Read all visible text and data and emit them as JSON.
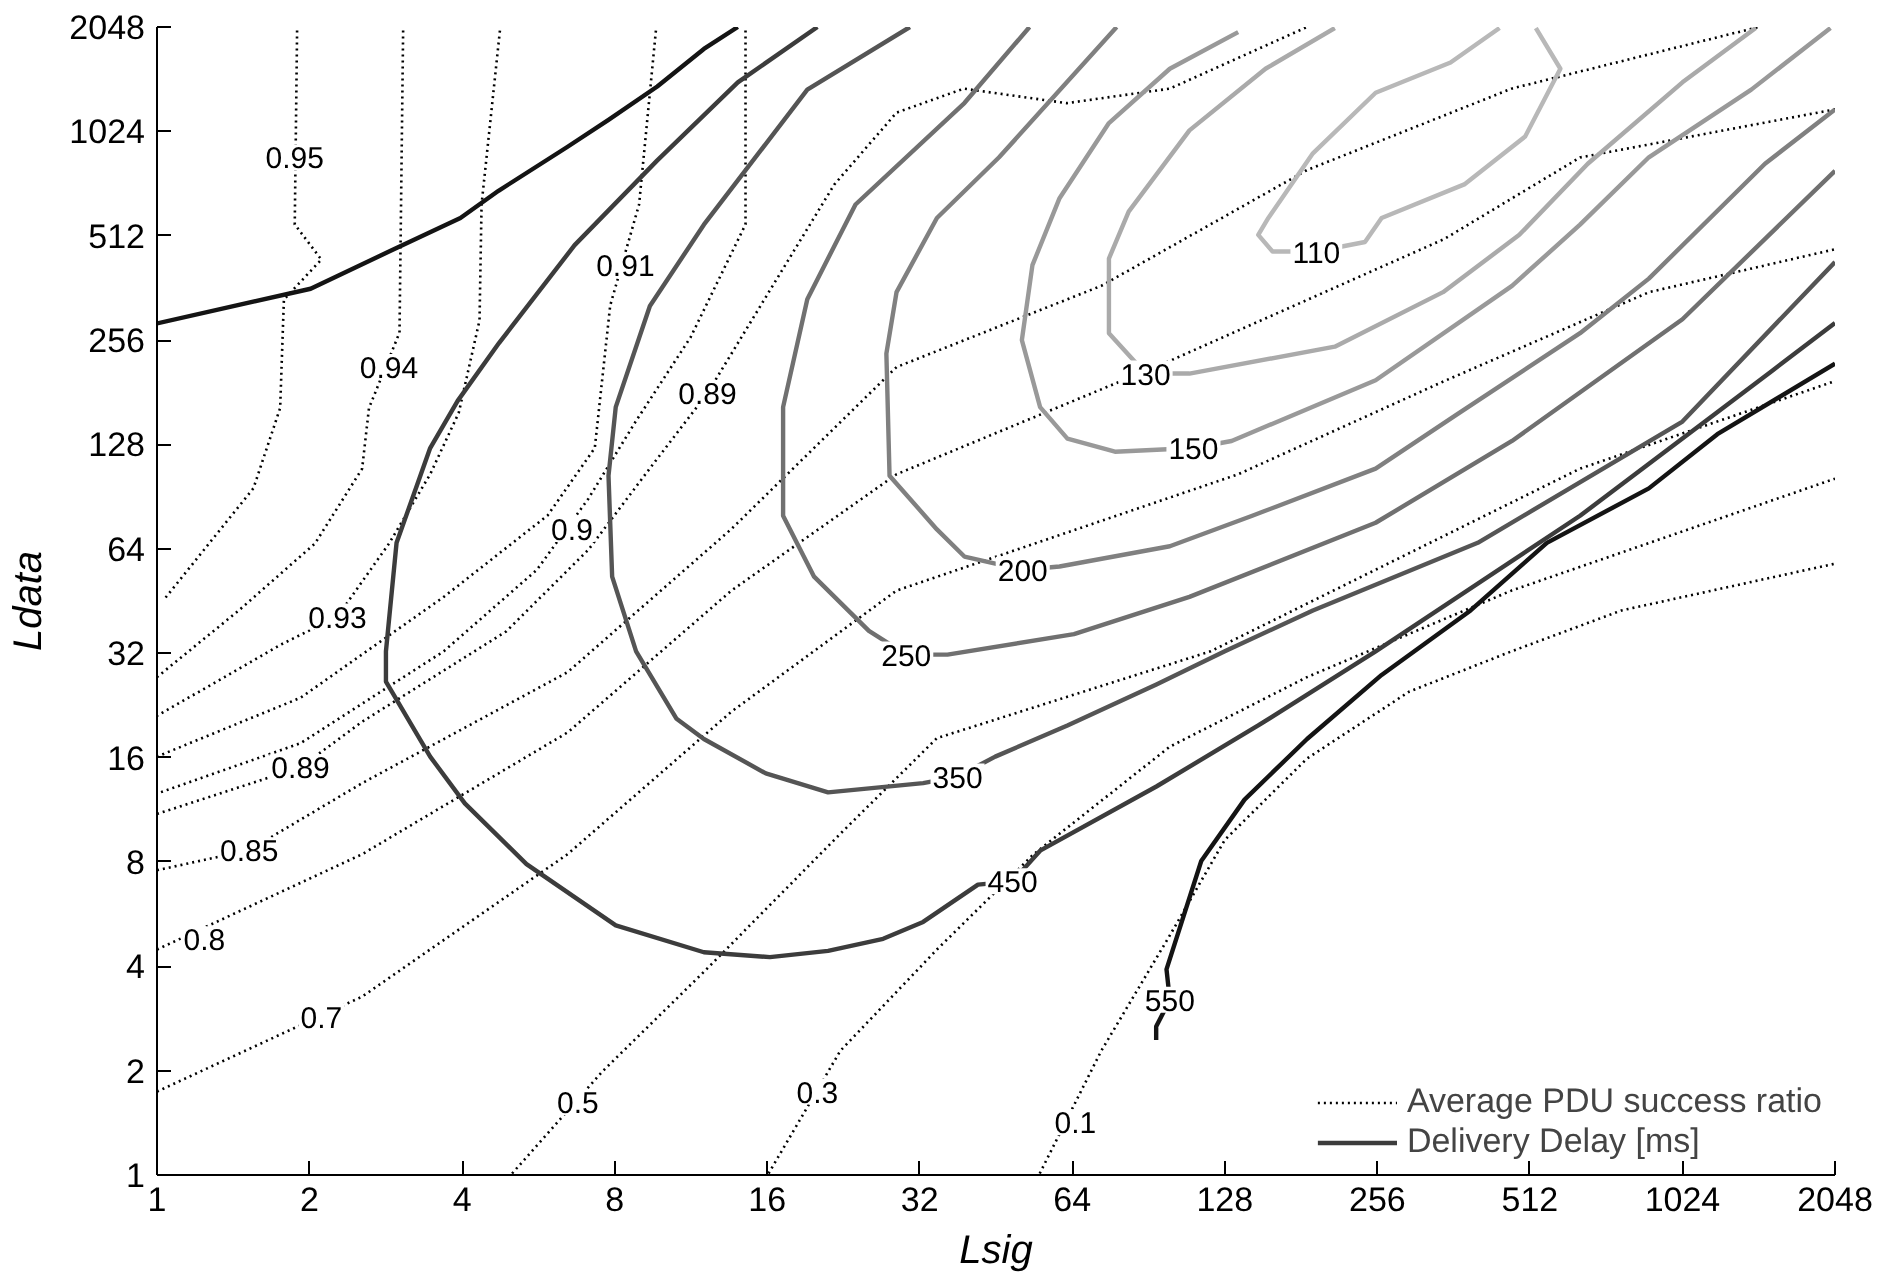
{
  "chart_data": {
    "type": "line",
    "log": "xy",
    "grid": false,
    "legend": "bottom right",
    "xlabel": "Lsig",
    "ylabel": "Ldata",
    "xlim": [
      1,
      2048
    ],
    "ylim": [
      1,
      2048
    ],
    "xticks": [
      1,
      2,
      4,
      8,
      16,
      32,
      64,
      128,
      256,
      512,
      1024,
      2048
    ],
    "yticks": [
      1,
      2,
      4,
      8,
      16,
      32,
      64,
      128,
      256,
      512,
      1024,
      2048
    ],
    "series": [
      {
        "name": "Average PDU success ratio",
        "color": "#000000",
        "line_style": "dotted",
        "x": [
          1.89,
          1.87,
          2.11,
          1.78,
          1.75,
          1.55,
          1.03
        ],
        "values": [
          2000,
          552,
          437,
          335,
          163,
          95.7,
          45.5
        ]
      },
      {
        "color": "#000000",
        "line_style": "dotted",
        "x": [
          3.06,
          3.01,
          2.62,
          2.54,
          2.05,
          1.45,
          1
        ],
        "values": [
          2000,
          269,
          163,
          109,
          66.3,
          42.5,
          27.3
        ]
      },
      {
        "color": "#000000",
        "line_style": "dotted",
        "x": [
          4.75,
          4.37,
          4.33,
          3.94,
          3.46,
          2.87,
          2.27,
          1.75,
          1
        ],
        "values": [
          2000,
          630,
          292,
          158,
          105,
          66.3,
          40.8,
          33.8,
          21.1
        ]
      },
      {
        "color": "#000000",
        "line_style": "dotted",
        "x": [
          9.65,
          8.94,
          7.84,
          7.31,
          5.9,
          3.68,
          1.92,
          1
        ],
        "values": [
          2000,
          630,
          322,
          125,
          79.9,
          46.5,
          23.8,
          16.1
        ]
      },
      {
        "color": "#000000",
        "line_style": "dotted",
        "x": [
          14.5,
          14.5,
          11.3,
          8.8,
          7.1,
          5.62,
          3.68,
          1.92,
          1
        ],
        "values": [
          2000,
          552,
          261,
          149,
          89.3,
          55.7,
          32.4,
          17.6,
          12.6
        ]
      },
      {
        "color": "#000000",
        "line_style": "dotted",
        "x": [
          1,
          1.92,
          2.54,
          4.89,
          7.1,
          9.38,
          12.2,
          16.4,
          21.7,
          28.8,
          39.1,
          62.4,
          99.7,
          186
        ],
        "values": [
          11.0,
          15.0,
          20.3,
          37.0,
          63.6,
          109,
          180,
          367,
          719,
          1160,
          1360,
          1235,
          1360,
          2048
        ]
      },
      {
        "color": "#000000",
        "line_style": "dotted",
        "x": [
          1,
          1.52,
          2.54,
          6.46,
          13.6,
          28.8,
          73.0,
          186,
          471,
          1448
        ],
        "values": [
          7.57,
          8.65,
          13.5,
          28.2,
          73.0,
          214,
          367,
          792,
          1360,
          2048
        ]
      },
      {
        "color": "#000000",
        "line_style": "dotted",
        "x": [
          1,
          2.54,
          6.46,
          13.6,
          28.8,
          99.7,
          347,
          643,
          2048
        ],
        "values": [
          4.47,
          8.42,
          18.9,
          48.5,
          105,
          223,
          501,
          861,
          1185
        ]
      },
      {
        "color": "#000000",
        "line_style": "dotted",
        "x": [
          1,
          2.54,
          6.46,
          13.6,
          28.8,
          136,
          347,
          880,
          2048
        ],
        "values": [
          1.74,
          3.27,
          8.42,
          21.7,
          48.5,
          105,
          195,
          352,
          468
        ]
      },
      {
        "color": "#000000",
        "line_style": "dotted",
        "x": [
          5.02,
          7.57,
          12.1,
          22.3,
          34.6,
          120,
          643,
          2048
        ],
        "values": [
          1.01,
          1.99,
          3.9,
          9.64,
          18.2,
          32.4,
          109,
          195
        ]
      },
      {
        "color": "#000000",
        "line_style": "dotted",
        "x": [
          16.1,
          22.3,
          34.6,
          53.7,
          99.7,
          186,
          471,
          2048
        ],
        "values": [
          1.01,
          2.28,
          4.47,
          8.42,
          17.2,
          27.3,
          48.5,
          102
        ]
      },
      {
        "color": "#000000",
        "line_style": "dotted",
        "x": [
          55.2,
          73.0,
          99.7,
          128,
          186,
          296,
          471,
          776,
          2048
        ],
        "values": [
          1.01,
          2.28,
          4.91,
          9.26,
          15.9,
          24.8,
          32.4,
          42.5,
          58.0
        ]
      },
      {
        "color": "#141414",
        "line_style": "solid",
        "x": [
          1,
          2.01,
          2.87,
          3.97,
          4.72,
          6.45,
          7.78,
          9.71,
          12.0,
          14.0
        ],
        "values": [
          286,
          360,
          461,
          576,
          690,
          923,
          1105,
          1380,
          1770,
          2048
        ]
      },
      {
        "color": "#141414",
        "line_style": "solid",
        "x": [
          93.7,
          93.7,
          99.7,
          98.2,
          115,
          140,
          186,
          261,
          391,
          553,
          879,
          1200,
          2048
        ],
        "values": [
          2.45,
          2.68,
          3.2,
          3.92,
          8.05,
          12.1,
          18.1,
          27.7,
          42.5,
          66.6,
          95.6,
          137,
          219
        ]
      },
      {
        "name": "Delivery Delay [ms]",
        "color": "#3c3c3c",
        "line_style": "solid",
        "x": [
          20.1,
          14.0,
          9.7,
          6.67,
          4.73,
          3.92,
          3.46,
          2.97,
          2.83,
          2.83,
          3.46,
          4.05,
          5.36,
          8.04,
          12.0,
          16.2,
          21.1,
          27.1,
          32.5,
          41.7,
          48.8,
          55.3,
          93.8,
          149,
          254,
          643,
          1540,
          2048
        ],
        "values": [
          2048,
          1418,
          843,
          481,
          251,
          171,
          125,
          66.6,
          32.4,
          26.5,
          16.1,
          11.8,
          7.88,
          5.25,
          4.39,
          4.25,
          4.43,
          4.8,
          5.37,
          6.88,
          7.03,
          8.62,
          13.2,
          19.8,
          32.4,
          79.7,
          209,
          287
        ]
      },
      {
        "color": "#555555",
        "line_style": "solid",
        "x": [
          30.6,
          19.2,
          12.0,
          9.39,
          8.04,
          7.78,
          7.91,
          8.82,
          10.6,
          12.0,
          15.9,
          21.1,
          32.5,
          38.0,
          45.1,
          62.6,
          93.8,
          128,
          191,
          404,
          1024,
          2048
        ],
        "values": [
          2048,
          1351,
          551,
          321,
          164,
          104,
          53.2,
          32.4,
          20.7,
          18.1,
          14.4,
          12.7,
          13.5,
          14.1,
          16.1,
          19.8,
          26.0,
          32.4,
          42.5,
          66.6,
          149,
          430
        ]
      },
      {
        "color": "#707070",
        "line_style": "solid",
        "x": [
          52.7,
          39.2,
          23.9,
          19.2,
          17.2,
          17.2,
          19.8,
          25.4,
          30.1,
          36.3,
          64.5,
          109,
          254,
          472,
          1024,
          2048
        ],
        "values": [
          2048,
          1236,
          630,
          336,
          164,
          79.7,
          53.2,
          37.1,
          31.7,
          31.7,
          36.3,
          46.5,
          76.1,
          131,
          294,
          788
        ]
      },
      {
        "color": "#808080",
        "line_style": "solid",
        "x": [
          78.3,
          45.9,
          34.6,
          28.8,
          27.5,
          27.9,
          34.6,
          39.2,
          51.1,
          60.4,
          99.7,
          145,
          254,
          367,
          643,
          879,
          1490,
          2048
        ],
        "values": [
          2048,
          862,
          576,
          352,
          234,
          104,
          72.8,
          60.8,
          55.7,
          56.9,
          65.1,
          79.7,
          109,
          156,
          268,
          385,
          826,
          1184
        ]
      },
      {
        "color": "#999999",
        "line_style": "solid",
        "x": [
          136,
          99.7,
          75.6,
          60.4,
          53.4,
          50.9,
          55.3,
          62.6,
          77.7,
          111,
          132,
          254,
          472,
          643,
          879,
          1400,
          2006
        ],
        "values": [
          1980,
          1552,
          1082,
          657,
          421,
          256,
          164,
          133,
          122,
          125,
          131,
          196,
          367,
          551,
          862,
          1351,
          2034
        ]
      },
      {
        "color": "#aaaaaa",
        "line_style": "solid",
        "x": [
          211,
          154,
          109,
          82.7,
          75.6,
          75.6,
          89.3,
          109,
          211,
          345,
          488,
          666,
          1024,
          1428
        ],
        "values": [
          2034,
          1552,
          1031,
          601,
          440,
          268,
          205,
          205,
          245,
          352,
          515,
          826,
          1418,
          2034
        ]
      },
      {
        "color": "#b8b8b8",
        "line_style": "solid",
        "x": [
          446,
          357,
          254,
          191,
          156,
          149,
          159,
          194,
          242,
          261,
          380,
          501,
          588,
          526
        ],
        "values": [
          2034,
          1618,
          1323,
          885,
          576,
          515,
          461,
          461,
          491,
          576,
          720,
          989,
          1552,
          2034
        ]
      }
    ],
    "annotations": [
      {
        "text": "0.95",
        "x": 1.87,
        "y": 861
      },
      {
        "text": "0.94",
        "x": 2.87,
        "y": 214
      },
      {
        "text": "0.93",
        "x": 2.27,
        "y": 40.8
      },
      {
        "text": "0.91",
        "x": 8.4,
        "y": 421
      },
      {
        "text": "0.9",
        "x": 6.59,
        "y": 73.0
      },
      {
        "text": "0.89",
        "x": 12.2,
        "y": 180
      },
      {
        "text": "0.89",
        "x": 1.92,
        "y": 15.0
      },
      {
        "text": "0.85",
        "x": 1.52,
        "y": 8.65
      },
      {
        "text": "0.8",
        "x": 1.24,
        "y": 4.79
      },
      {
        "text": "0.7",
        "x": 2.11,
        "y": 2.86
      },
      {
        "text": "0.5",
        "x": 6.77,
        "y": 1.62
      },
      {
        "text": "0.3",
        "x": 20.1,
        "y": 1.74
      },
      {
        "text": "0.1",
        "x": 64.9,
        "y": 1.42
      },
      {
        "text": "110",
        "x": 194,
        "y": 461
      },
      {
        "text": "130",
        "x": 89.3,
        "y": 205
      },
      {
        "text": "150",
        "x": 111,
        "y": 125
      },
      {
        "text": "200",
        "x": 51.1,
        "y": 55.7
      },
      {
        "text": "250",
        "x": 30.1,
        "y": 31.7
      },
      {
        "text": "350",
        "x": 38.0,
        "y": 14.1
      },
      {
        "text": "450",
        "x": 48.8,
        "y": 7.03
      },
      {
        "text": "550",
        "x": 99.7,
        "y": 3.2
      }
    ]
  }
}
